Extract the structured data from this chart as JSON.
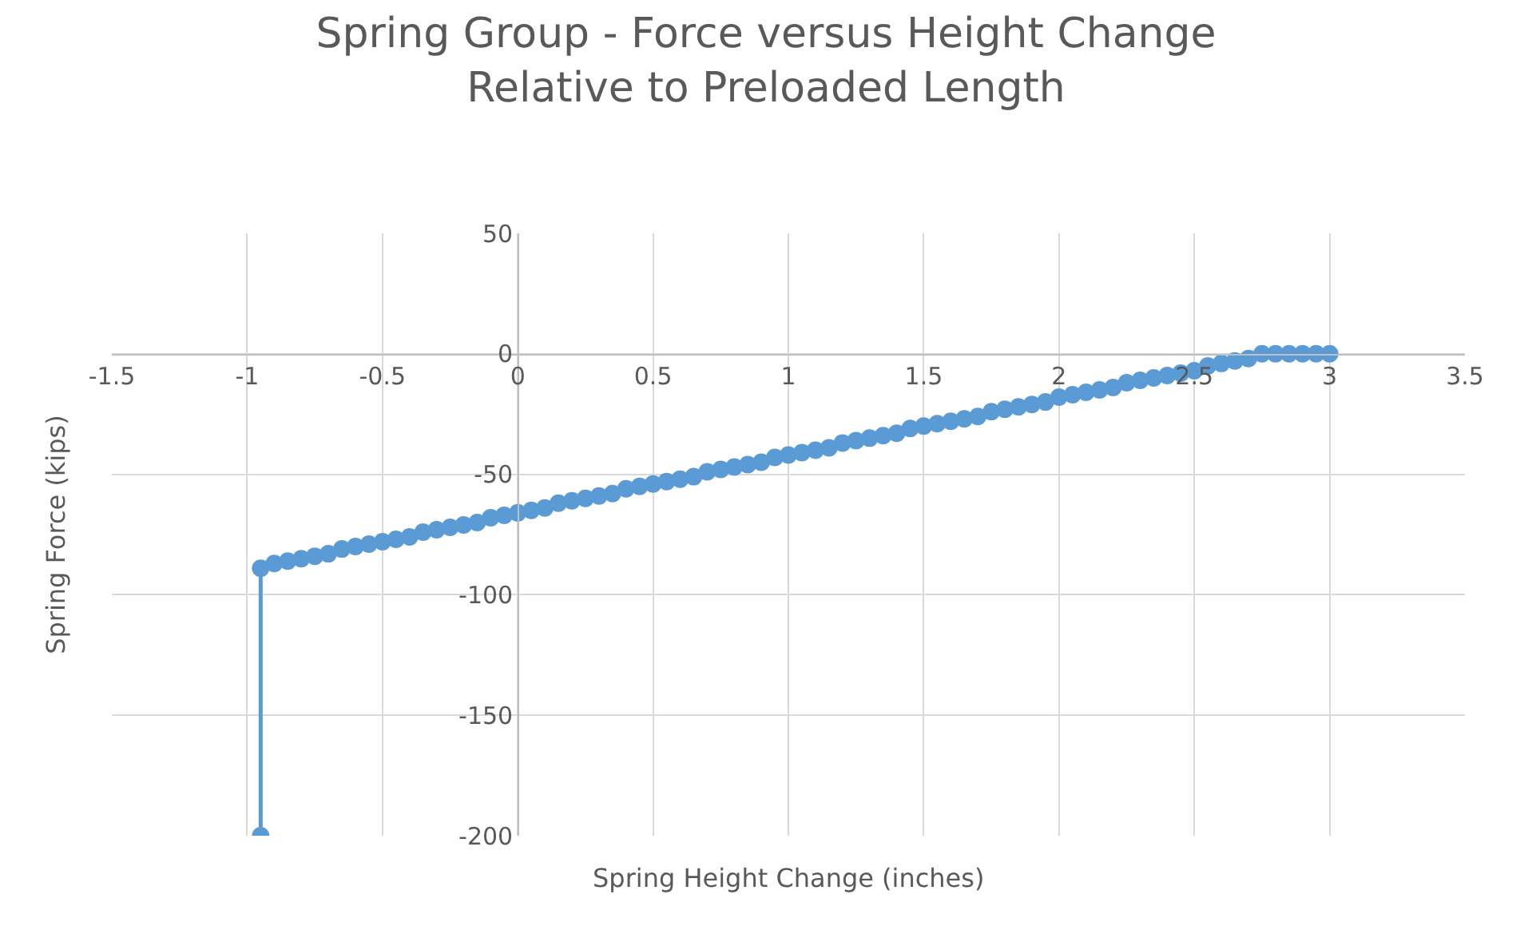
{
  "chart_data": {
    "type": "line",
    "title": "Spring Group - Force versus Height Change\nRelative to Preloaded Length",
    "xlabel": "Spring Height Change (inches)",
    "ylabel": "Spring Force (kips)",
    "series": [
      {
        "color": "#5b9bd5",
        "x": [
          -0.95,
          -0.95,
          -0.9,
          -0.85,
          -0.8,
          -0.75,
          -0.7,
          -0.65,
          -0.6,
          -0.55,
          -0.5,
          -0.45,
          -0.4,
          -0.35,
          -0.3,
          -0.25,
          -0.2,
          -0.15,
          -0.1,
          -0.05,
          0,
          0.05,
          0.1,
          0.15,
          0.2,
          0.25,
          0.3,
          0.35,
          0.4,
          0.45,
          0.5,
          0.55,
          0.6,
          0.65,
          0.7,
          0.75,
          0.8,
          0.85,
          0.9,
          0.95,
          1.0,
          1.05,
          1.1,
          1.15,
          1.2,
          1.25,
          1.3,
          1.35,
          1.4,
          1.45,
          1.5,
          1.55,
          1.6,
          1.65,
          1.7,
          1.75,
          1.8,
          1.85,
          1.9,
          1.95,
          2.0,
          2.05,
          2.1,
          2.15,
          2.2,
          2.25,
          2.3,
          2.35,
          2.4,
          2.45,
          2.5,
          2.55,
          2.6,
          2.65,
          2.7,
          2.75,
          2.8,
          2.85,
          2.9,
          2.95,
          3.0
        ],
        "values": [
          -200,
          -89,
          -87,
          -86,
          -85,
          -84,
          -83,
          -81,
          -80,
          -79,
          -78,
          -77,
          -76,
          -74,
          -73,
          -72,
          -71,
          -70,
          -68,
          -67,
          -66,
          -65,
          -64,
          -62,
          -61,
          -60,
          -59,
          -58,
          -56,
          -55,
          -54,
          -53,
          -52,
          -51,
          -49,
          -48,
          -47,
          -46,
          -45,
          -43,
          -42,
          -41,
          -40,
          -39,
          -37,
          -36,
          -35,
          -34,
          -33,
          -31,
          -30,
          -29,
          -28,
          -27,
          -26,
          -24,
          -23,
          -22,
          -21,
          -20,
          -18,
          -17,
          -16,
          -15,
          -14,
          -12,
          -11,
          -10,
          -9,
          -8,
          -7,
          -5,
          -4,
          -3,
          -2,
          0,
          0,
          0,
          0,
          0,
          0
        ]
      }
    ],
    "xlim": [
      -1.5,
      3.5
    ],
    "xticks": [
      -1.5,
      -1,
      -0.5,
      0,
      0.5,
      1,
      1.5,
      2,
      2.5,
      3,
      3.5
    ],
    "ylim": [
      -200,
      50
    ],
    "yticks": [
      -200,
      -150,
      -100,
      -50,
      0,
      50
    ],
    "grid": true,
    "marker": "circle",
    "line_style": "solid"
  }
}
